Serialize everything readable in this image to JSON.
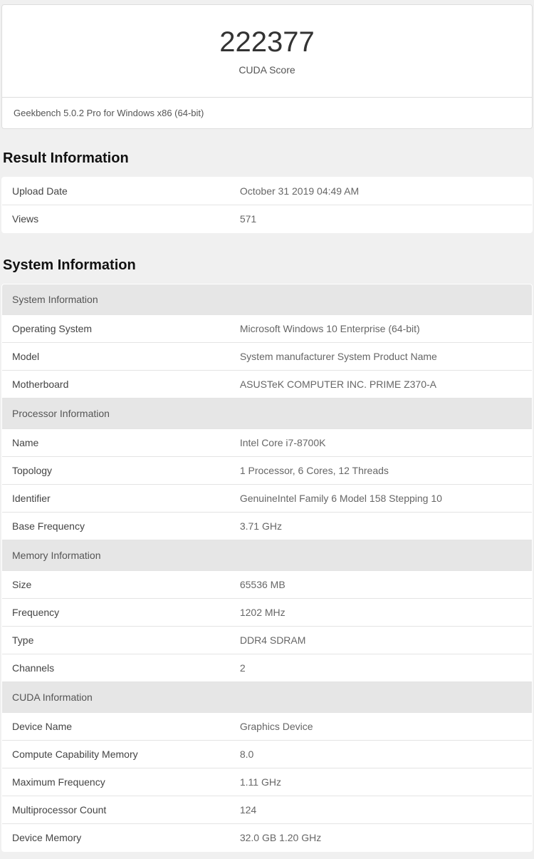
{
  "score": {
    "value": "222377",
    "label": "CUDA Score",
    "footer": "Geekbench 5.0.2 Pro for Windows x86 (64-bit)"
  },
  "result_info": {
    "title": "Result Information",
    "rows": [
      {
        "label": "Upload Date",
        "value": "October 31 2019 04:49 AM"
      },
      {
        "label": "Views",
        "value": "571"
      }
    ]
  },
  "system_info": {
    "title": "System Information",
    "sections": [
      {
        "header": "System Information",
        "rows": [
          {
            "label": "Operating System",
            "value": "Microsoft Windows 10 Enterprise (64-bit)"
          },
          {
            "label": "Model",
            "value": "System manufacturer System Product Name"
          },
          {
            "label": "Motherboard",
            "value": "ASUSTeK COMPUTER INC. PRIME Z370-A"
          }
        ]
      },
      {
        "header": "Processor Information",
        "rows": [
          {
            "label": "Name",
            "value": "Intel Core i7-8700K"
          },
          {
            "label": "Topology",
            "value": "1 Processor, 6 Cores, 12 Threads"
          },
          {
            "label": "Identifier",
            "value": "GenuineIntel Family 6 Model 158 Stepping 10"
          },
          {
            "label": "Base Frequency",
            "value": "3.71 GHz"
          }
        ]
      },
      {
        "header": "Memory Information",
        "rows": [
          {
            "label": "Size",
            "value": "65536 MB"
          },
          {
            "label": "Frequency",
            "value": "1202 MHz"
          },
          {
            "label": "Type",
            "value": "DDR4 SDRAM"
          },
          {
            "label": "Channels",
            "value": "2"
          }
        ]
      },
      {
        "header": "CUDA Information",
        "rows": [
          {
            "label": "Device Name",
            "value": "Graphics Device"
          },
          {
            "label": "Compute Capability Memory",
            "value": "8.0"
          },
          {
            "label": "Maximum Frequency",
            "value": "1.11 GHz"
          },
          {
            "label": "Multiprocessor Count",
            "value": "124"
          },
          {
            "label": "Device Memory",
            "value": "32.0 GB 1.20 GHz"
          }
        ]
      }
    ]
  }
}
